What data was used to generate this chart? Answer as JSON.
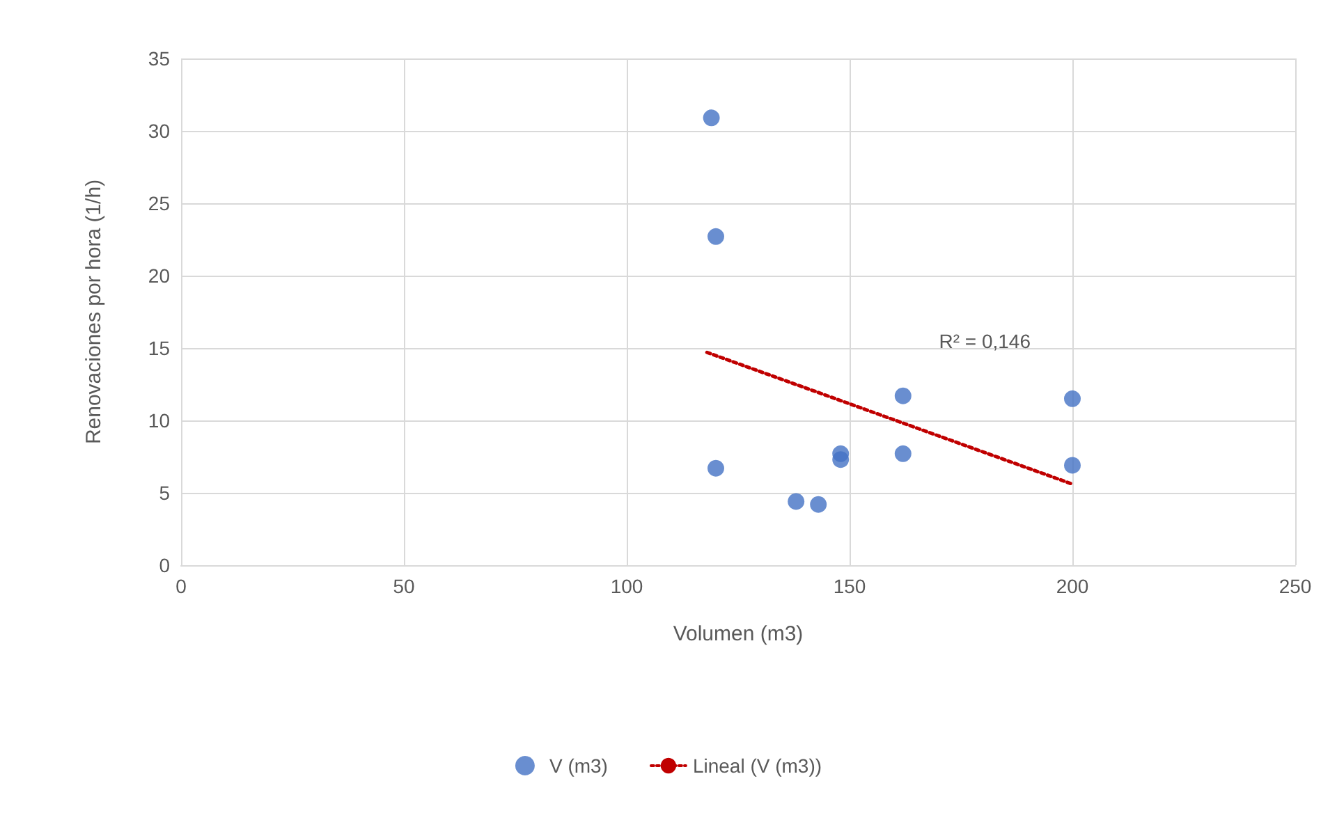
{
  "chart_data": {
    "type": "scatter",
    "xlabel": "Volumen (m3)",
    "ylabel": "Renovaciones por hora (1/h)",
    "xlim": [
      0,
      250
    ],
    "xticks": [
      0,
      50,
      100,
      150,
      200,
      250
    ],
    "ylim": [
      0,
      35
    ],
    "yticks": [
      0,
      5,
      10,
      15,
      20,
      25,
      30,
      35
    ],
    "grid": true,
    "legend": "bottom",
    "series": [
      {
        "name": "V (m3)",
        "color": "#4472c4",
        "marker": "circle",
        "x": [
          119,
          120,
          120,
          138,
          143,
          148,
          148,
          162,
          162,
          200,
          200
        ],
        "values": [
          30.9,
          22.7,
          6.7,
          4.4,
          4.2,
          7.7,
          7.3,
          11.7,
          7.7,
          11.5,
          6.9
        ]
      },
      {
        "name": "Lineal (V (m3))",
        "type": "line",
        "color": "#c00000",
        "marker": "none",
        "line_style": "dotted",
        "x": [
          118,
          200
        ],
        "values": [
          14.7,
          5.6
        ]
      }
    ],
    "annotations": [
      "R² = 0,146"
    ]
  }
}
